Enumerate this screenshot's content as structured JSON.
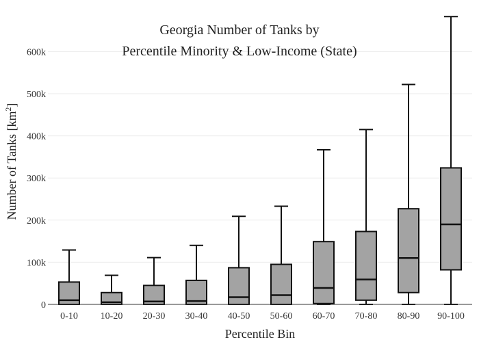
{
  "chart_data": {
    "type": "box",
    "title_lines": [
      "Georgia Number of Tanks by",
      "Percentile Minority & Low-Income (State)"
    ],
    "xlabel": "Percentile Bin",
    "ylabel_main": "Number of Tanks  [km",
    "ylabel_sup": "2",
    "ylabel_end": "]",
    "ylim": [
      0,
      690000
    ],
    "yticks": [
      {
        "value": 0,
        "label": "0"
      },
      {
        "value": 100000,
        "label": "100k"
      },
      {
        "value": 200000,
        "label": "200k"
      },
      {
        "value": 300000,
        "label": "300k"
      },
      {
        "value": 400000,
        "label": "400k"
      },
      {
        "value": 500000,
        "label": "500k"
      },
      {
        "value": 600000,
        "label": "600k"
      }
    ],
    "grid": true,
    "box_color": "#a3a3a3",
    "categories": [
      "0-10",
      "10-20",
      "20-30",
      "30-40",
      "40-50",
      "50-60",
      "60-70",
      "70-80",
      "80-90",
      "90-100"
    ],
    "boxes": [
      {
        "min": 0,
        "q1": 0,
        "median": 10000,
        "q3": 53000,
        "max": 129000
      },
      {
        "min": 0,
        "q1": 0,
        "median": 5000,
        "q3": 28000,
        "max": 69000
      },
      {
        "min": 0,
        "q1": 0,
        "median": 7000,
        "q3": 45000,
        "max": 111000
      },
      {
        "min": 0,
        "q1": 0,
        "median": 8000,
        "q3": 57000,
        "max": 140000
      },
      {
        "min": 0,
        "q1": 0,
        "median": 17000,
        "q3": 87000,
        "max": 209000
      },
      {
        "min": 0,
        "q1": 0,
        "median": 22000,
        "q3": 95000,
        "max": 233000
      },
      {
        "min": 0,
        "q1": 2000,
        "median": 39000,
        "q3": 149000,
        "max": 367000
      },
      {
        "min": 0,
        "q1": 10000,
        "median": 59000,
        "q3": 173000,
        "max": 415000
      },
      {
        "min": 0,
        "q1": 28000,
        "median": 110000,
        "q3": 227000,
        "max": 522000
      },
      {
        "min": 0,
        "q1": 82000,
        "median": 190000,
        "q3": 324000,
        "max": 683000
      }
    ]
  }
}
